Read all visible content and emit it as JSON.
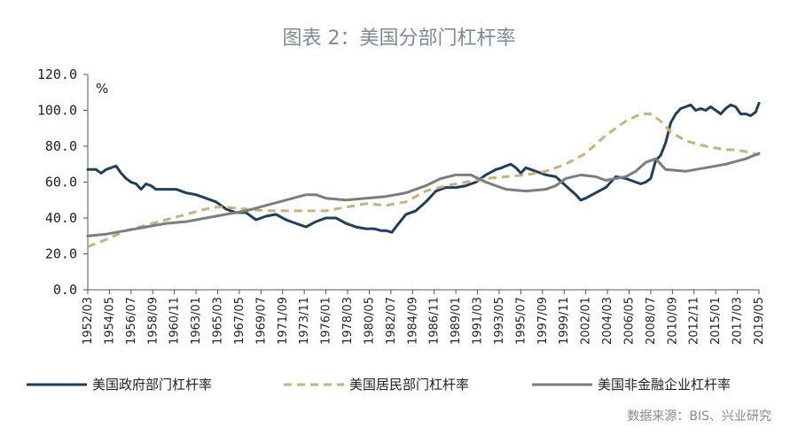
{
  "chart_data": {
    "type": "line",
    "title": "图表 2：美国分部门杠杆率",
    "unit": "%",
    "source": "数据来源：BIS、兴业研究",
    "ylim": [
      0,
      120
    ],
    "yticks": [
      "0.0",
      "20.0",
      "40.0",
      "60.0",
      "80.0",
      "100.0",
      "120.0"
    ],
    "ytick_values": [
      0,
      20,
      40,
      60,
      80,
      100,
      120
    ],
    "xlim": [
      1952.167,
      2019.333
    ],
    "xticks": [
      "1952/03",
      "1954/05",
      "1956/07",
      "1958/09",
      "1960/11",
      "1963/01",
      "1965/03",
      "1967/05",
      "1969/07",
      "1971/09",
      "1973/11",
      "1976/01",
      "1978/03",
      "1980/05",
      "1982/07",
      "1984/09",
      "1986/11",
      "1989/01",
      "1991/03",
      "1993/05",
      "1995/07",
      "1997/09",
      "1999/11",
      "2002/01",
      "2004/03",
      "2006/05",
      "2008/07",
      "2010/09",
      "2012/11",
      "2015/01",
      "2017/03",
      "2019/05"
    ],
    "legend_position": "bottom",
    "colors": {
      "government": "#1f3f5f",
      "household": "#c8b27a",
      "nonfinancial": "#7d7d7d"
    },
    "series": [
      {
        "name": "美国政府部门杠杆率",
        "style": "solid",
        "color": "#1f3f5f",
        "x": [
          1952.17,
          1953.0,
          1953.5,
          1954.0,
          1954.5,
          1955.0,
          1955.5,
          1956.0,
          1956.5,
          1957.0,
          1957.5,
          1958.0,
          1958.5,
          1959.0,
          1959.5,
          1960.0,
          1961.0,
          1962.0,
          1963.0,
          1964.0,
          1965.0,
          1966.0,
          1967.0,
          1968.0,
          1969.0,
          1970.0,
          1971.0,
          1972.0,
          1973.0,
          1974.0,
          1975.0,
          1976.0,
          1977.0,
          1978.0,
          1979.0,
          1980.0,
          1980.8,
          1981.5,
          1982.0,
          1982.6,
          1983.0,
          1984.0,
          1985.0,
          1986.0,
          1987.0,
          1988.0,
          1989.0,
          1990.0,
          1991.0,
          1992.0,
          1993.0,
          1993.6,
          1994.0,
          1994.5,
          1995.0,
          1995.5,
          1996.0,
          1997.0,
          1998.0,
          1999.0,
          2000.0,
          2001.0,
          2001.5,
          2002.0,
          2003.0,
          2004.0,
          2005.0,
          2006.0,
          2007.0,
          2007.5,
          2008.0,
          2008.5,
          2009.0,
          2009.5,
          2010.0,
          2010.5,
          2011.0,
          2011.5,
          2012.0,
          2012.5,
          2013.0,
          2013.5,
          2014.0,
          2014.5,
          2015.0,
          2015.5,
          2016.0,
          2016.5,
          2017.0,
          2017.5,
          2018.0,
          2018.5,
          2019.0,
          2019.33
        ],
        "y": [
          67,
          67,
          65,
          67,
          68,
          69,
          65,
          62,
          60,
          59,
          56,
          59,
          58,
          56,
          56,
          56,
          56,
          54,
          53,
          51,
          49,
          45,
          43,
          43,
          39,
          41,
          42,
          39,
          37,
          35,
          38,
          40,
          40,
          37,
          35,
          34,
          34,
          33,
          33,
          32,
          35,
          42,
          44,
          49,
          55,
          57,
          57,
          58,
          60,
          64,
          67,
          68,
          69,
          70,
          68,
          65,
          68,
          66,
          64,
          63,
          58,
          53,
          50,
          51,
          54,
          57,
          63,
          62,
          60,
          59,
          60,
          62,
          72,
          75,
          82,
          93,
          98,
          101,
          102,
          103,
          100,
          101,
          100,
          102,
          100,
          98,
          101,
          103,
          102,
          98,
          98,
          97,
          99,
          104
        ]
      },
      {
        "name": "美国居民部门杠杆率",
        "style": "dashed",
        "color": "#c8b27a",
        "x": [
          1952.17,
          1954.0,
          1956.0,
          1958.0,
          1960.0,
          1962.0,
          1964.0,
          1965.0,
          1966.0,
          1968.0,
          1970.0,
          1972.0,
          1974.0,
          1976.0,
          1978.0,
          1980.0,
          1982.0,
          1984.0,
          1986.0,
          1988.0,
          1990.0,
          1992.0,
          1994.0,
          1996.0,
          1998.0,
          2000.0,
          2002.0,
          2004.0,
          2006.0,
          2007.5,
          2008.5,
          2009.5,
          2010.5,
          2012.0,
          2014.0,
          2016.0,
          2017.0,
          2018.0,
          2019.33
        ],
        "y": [
          24,
          28,
          33,
          36,
          39,
          42,
          45,
          46,
          46,
          45,
          44,
          44,
          44,
          44,
          46,
          48,
          47,
          49,
          55,
          58,
          60,
          62,
          63,
          64,
          66,
          70,
          76,
          86,
          94,
          98,
          98,
          94,
          88,
          83,
          80,
          78,
          78,
          77,
          75
        ]
      },
      {
        "name": "美国非金融企业杠杆率",
        "style": "solid",
        "color": "#7d7d7d",
        "x": [
          1952.17,
          1954.0,
          1956.0,
          1958.0,
          1960.0,
          1962.0,
          1964.0,
          1966.0,
          1968.0,
          1970.0,
          1972.0,
          1974.0,
          1975.0,
          1976.0,
          1978.0,
          1980.0,
          1982.0,
          1984.0,
          1986.0,
          1987.5,
          1989.0,
          1990.5,
          1992.0,
          1993.0,
          1994.0,
          1996.0,
          1998.0,
          1999.0,
          2000.0,
          2001.5,
          2003.0,
          2004.0,
          2006.0,
          2007.0,
          2008.0,
          2009.0,
          2010.0,
          2012.0,
          2014.0,
          2016.0,
          2018.0,
          2019.33
        ],
        "y": [
          30,
          31,
          33,
          35,
          37,
          38,
          40,
          42,
          44,
          47,
          50,
          53,
          53,
          51,
          50,
          51,
          52,
          54,
          58,
          62,
          64,
          64,
          60,
          58,
          56,
          55,
          56,
          58,
          62,
          64,
          63,
          61,
          63,
          66,
          71,
          73,
          67,
          66,
          68,
          70,
          73,
          76
        ]
      }
    ]
  }
}
